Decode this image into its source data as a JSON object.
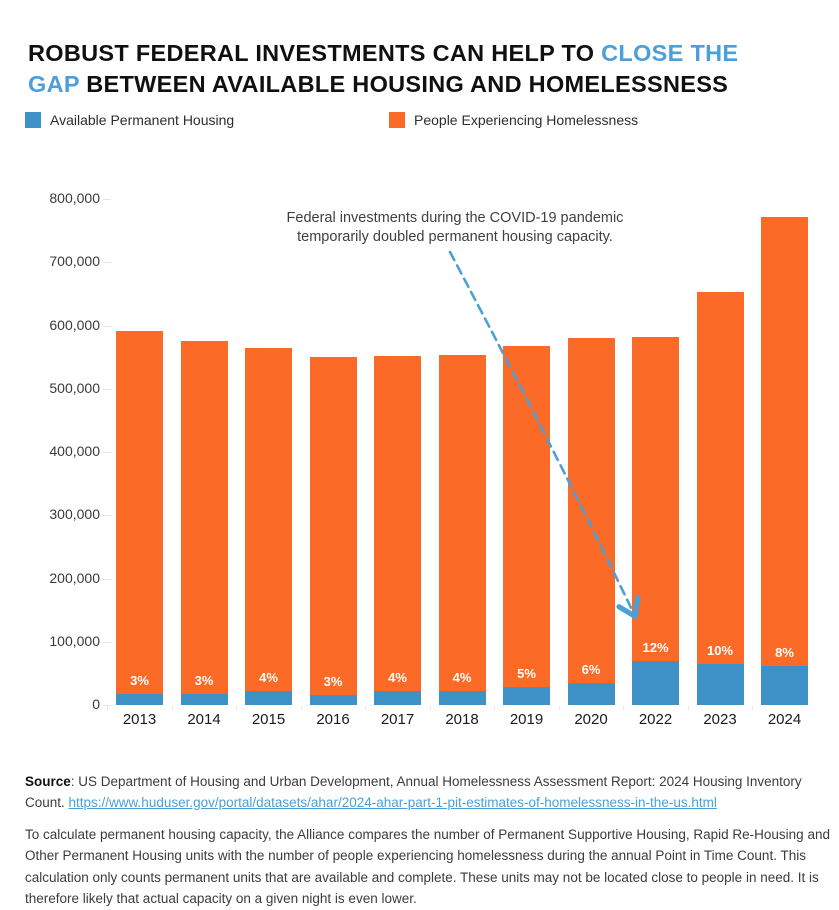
{
  "title": {
    "line1_black": "ROBUST FEDERAL INVESTMENTS CAN HELP TO ",
    "line1_blue": "CLOSE THE",
    "line2_blue": "GAP",
    "line2_black": " BETWEEN AVAILABLE HOUSING AND HOMELESSNESS"
  },
  "legend": {
    "items": [
      {
        "label": "Available Permanent Housing",
        "color": "#3D91C6"
      },
      {
        "label": "People Experiencing Homelessness",
        "color": "#FB6A26"
      }
    ]
  },
  "annotation": {
    "line1": "Federal investments during the COVID-19 pandemic",
    "line2": "temporarily doubled permanent housing capacity."
  },
  "chart_data": {
    "type": "bar",
    "subtype": "overlay-stacked",
    "note": "Total bar height = people experiencing homelessness; blue overlay at base = available permanent housing; white label = housing as % of homelessness",
    "categories": [
      "2013",
      "2014",
      "2015",
      "2016",
      "2017",
      "2018",
      "2019",
      "2020",
      "2022",
      "2023",
      "2024"
    ],
    "series": [
      {
        "name": "Available Permanent Housing",
        "color": "#3D91C6",
        "values": [
          17800,
          17300,
          22600,
          16500,
          22000,
          22100,
          28400,
          34800,
          69900,
          65300,
          61700
        ]
      },
      {
        "name": "People Experiencing Homelessness",
        "color": "#FB6A26",
        "values": [
          591000,
          576000,
          565000,
          550000,
          551000,
          553000,
          568000,
          580000,
          582000,
          653000,
          771000
        ]
      }
    ],
    "bar_labels": [
      "3%",
      "3%",
      "4%",
      "3%",
      "4%",
      "4%",
      "5%",
      "6%",
      "12%",
      "10%",
      "8%"
    ],
    "ylim": [
      0,
      800000
    ],
    "ytick_step": 100000,
    "ytick_labels": [
      "0",
      "100,000",
      "200,000",
      "300,000",
      "400,000",
      "500,000",
      "600,000",
      "700,000",
      "800,000"
    ],
    "grid": false,
    "legend_position": "top"
  },
  "footer": {
    "source_label": "Source",
    "source_text": ": US Department of Housing and Urban Development, Annual Homelessness Assessment Report: 2024 Housing Inventory Count. ",
    "source_link": "https://www.huduser.gov/portal/datasets/ahar/2024-ahar-part-1-pit-estimates-of-homelessness-in-the-us.html",
    "methodology": "To calculate permanent housing capacity, the Alliance compares the number of Permanent Supportive Housing, Rapid Re-Housing and Other Permanent Housing units with the number of people experiencing homelessness during the annual Point in Time Count. This calculation only counts permanent units that are available and complete. These units may not be located close to people in need. It is therefore likely that actual capacity on a given night is even lower."
  },
  "colors": {
    "title_highlight": "#4D9FDB",
    "bar_blue": "#3D91C6",
    "bar_orange": "#FB6A26",
    "arrow": "#4D9FD6",
    "link": "#4A9FD9"
  }
}
